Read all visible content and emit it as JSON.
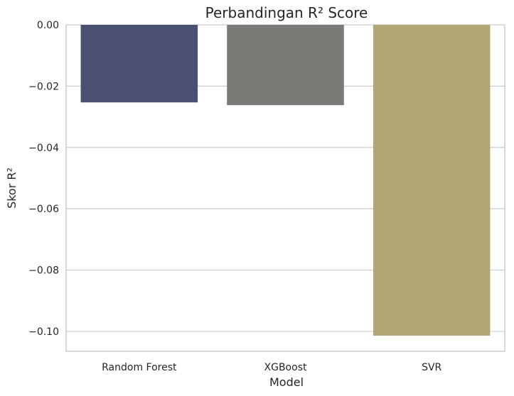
{
  "chart_data": {
    "type": "bar",
    "title": "Perbandingan R² Score",
    "xlabel": "Model",
    "ylabel": "Skor R²",
    "categories": [
      "Random Forest",
      "XGBoost",
      "SVR"
    ],
    "values": [
      -0.0253,
      -0.0262,
      -0.1014
    ],
    "colors": [
      "#4a5170",
      "#7b7a76",
      "#b1a674"
    ],
    "ylim": [
      -0.1065,
      0.0
    ],
    "yticks": [
      0.0,
      -0.02,
      -0.04,
      -0.06,
      -0.08,
      -0.1
    ],
    "ytick_labels": [
      "0.00",
      "−0.02",
      "−0.04",
      "−0.06",
      "−0.08",
      "−0.10"
    ],
    "grid": "horizontal"
  }
}
